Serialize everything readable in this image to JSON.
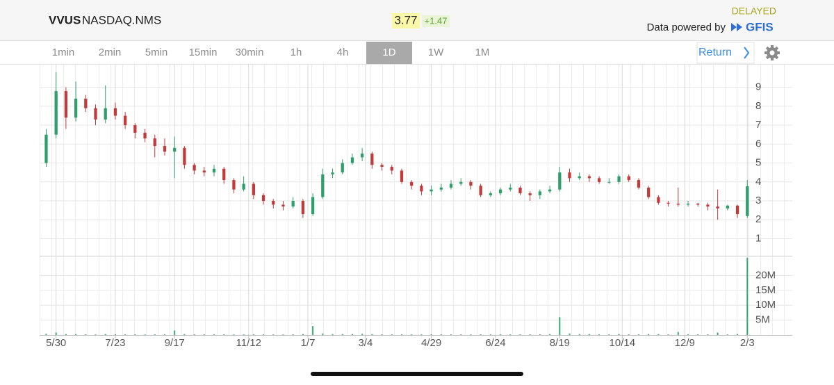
{
  "header": {
    "symbol": "VVUS",
    "exchange": "NASDAQ.NMS",
    "price": "3.77",
    "change": "+1.47",
    "status": "DELAYED",
    "powered_by": "Data powered by",
    "provider": "GFIS"
  },
  "toolbar": {
    "tabs": [
      "1min",
      "2min",
      "5min",
      "15min",
      "30min",
      "1h",
      "4h",
      "1D",
      "1W",
      "1M"
    ],
    "selected": 7,
    "return_label": "Return"
  },
  "chart_data": {
    "type": "candlestick",
    "x": [
      -6,
      0,
      6,
      12,
      18,
      24,
      30,
      36,
      42,
      48,
      54,
      60,
      66,
      72,
      78,
      84,
      90,
      96,
      102,
      108,
      114,
      120,
      126,
      132,
      138,
      144,
      150,
      156,
      162,
      168,
      174,
      180,
      186,
      192,
      198,
      204,
      210,
      216,
      222,
      228,
      234,
      240,
      246,
      252,
      258,
      264,
      270,
      276,
      282,
      288,
      294,
      300,
      306,
      312,
      318,
      324,
      330,
      336,
      342,
      348,
      354,
      360,
      366,
      372,
      378,
      384,
      390,
      396,
      402,
      408,
      414,
      420
    ],
    "open": [
      5.0,
      6.5,
      8.8,
      7.4,
      8.4,
      7.9,
      7.3,
      7.9,
      7.5,
      7.0,
      6.6,
      6.3,
      5.9,
      5.6,
      5.8,
      4.9,
      4.6,
      4.5,
      4.7,
      4.1,
      3.6,
      3.9,
      3.3,
      3.0,
      2.8,
      2.7,
      3.0,
      2.3,
      3.2,
      4.4,
      4.5,
      5.0,
      5.3,
      5.5,
      4.9,
      4.8,
      4.6,
      4.0,
      3.8,
      3.5,
      3.6,
      3.7,
      3.9,
      4.0,
      3.8,
      3.3,
      3.4,
      3.6,
      3.7,
      3.4,
      3.3,
      3.5,
      3.6,
      4.5,
      4.2,
      4.3,
      4.2,
      4.0,
      4.0,
      4.3,
      4.1,
      3.7,
      3.2,
      2.9,
      2.85,
      2.8,
      2.85,
      2.8,
      2.7,
      2.6,
      2.75,
      2.2
    ],
    "high": [
      6.8,
      9.8,
      9.0,
      9.3,
      8.6,
      8.1,
      9.1,
      8.2,
      7.7,
      7.1,
      6.8,
      6.5,
      6.3,
      6.4,
      5.9,
      5.0,
      4.8,
      4.9,
      4.8,
      4.2,
      4.3,
      4.0,
      3.4,
      3.1,
      3.0,
      3.2,
      3.1,
      3.4,
      4.7,
      4.7,
      5.2,
      5.5,
      5.8,
      5.6,
      5.0,
      4.9,
      4.7,
      4.1,
      3.9,
      3.8,
      3.9,
      4.1,
      4.2,
      4.1,
      3.9,
      3.5,
      3.7,
      3.9,
      3.8,
      3.5,
      3.6,
      3.8,
      4.8,
      4.7,
      4.5,
      4.4,
      4.3,
      4.2,
      4.4,
      4.4,
      4.2,
      3.8,
      3.3,
      3.0,
      3.7,
      3.0,
      2.9,
      2.9,
      3.6,
      2.8,
      2.8,
      4.1
    ],
    "low": [
      4.8,
      6.3,
      6.8,
      7.2,
      7.7,
      7.0,
      7.1,
      7.3,
      6.8,
      6.3,
      6.1,
      5.3,
      5.4,
      4.2,
      4.7,
      4.4,
      4.3,
      4.3,
      3.9,
      3.4,
      3.5,
      3.1,
      2.8,
      2.6,
      2.5,
      2.6,
      2.1,
      2.2,
      3.1,
      4.2,
      4.4,
      4.9,
      5.1,
      4.7,
      4.6,
      4.4,
      3.9,
      3.6,
      3.3,
      3.3,
      3.5,
      3.6,
      3.8,
      3.6,
      3.2,
      3.2,
      3.3,
      3.5,
      3.3,
      3.0,
      3.1,
      3.4,
      3.5,
      4.0,
      4.1,
      4.0,
      3.9,
      3.9,
      3.9,
      4.0,
      3.6,
      3.1,
      2.8,
      2.7,
      2.7,
      2.7,
      2.7,
      2.5,
      2.0,
      2.5,
      2.1,
      2.1
    ],
    "close": [
      6.5,
      8.8,
      7.4,
      8.4,
      7.9,
      7.3,
      7.9,
      7.5,
      7.0,
      6.6,
      6.3,
      5.9,
      5.6,
      5.8,
      4.9,
      4.6,
      4.5,
      4.7,
      4.1,
      3.6,
      3.9,
      3.3,
      3.0,
      2.8,
      2.7,
      3.0,
      2.3,
      3.2,
      4.4,
      4.5,
      5.0,
      5.3,
      5.5,
      4.9,
      4.8,
      4.6,
      4.0,
      3.8,
      3.5,
      3.6,
      3.7,
      3.9,
      4.0,
      3.8,
      3.3,
      3.4,
      3.6,
      3.7,
      3.4,
      3.3,
      3.5,
      3.6,
      4.5,
      4.2,
      4.3,
      4.2,
      4.0,
      4.0,
      4.3,
      4.1,
      3.7,
      3.2,
      2.9,
      2.85,
      2.8,
      2.85,
      2.8,
      2.7,
      2.6,
      2.75,
      2.3,
      3.77
    ],
    "volume": [
      400000,
      800000,
      300000,
      300000,
      200000,
      200000,
      300000,
      200000,
      200000,
      200000,
      200000,
      200000,
      200000,
      1500000,
      300000,
      200000,
      200000,
      200000,
      200000,
      200000,
      200000,
      200000,
      200000,
      200000,
      200000,
      200000,
      300000,
      3000000,
      500000,
      300000,
      300000,
      300000,
      400000,
      300000,
      200000,
      200000,
      200000,
      200000,
      200000,
      200000,
      200000,
      200000,
      200000,
      200000,
      200000,
      200000,
      200000,
      200000,
      200000,
      200000,
      200000,
      300000,
      6000000,
      500000,
      300000,
      300000,
      200000,
      200000,
      300000,
      200000,
      200000,
      300000,
      300000,
      200000,
      1000000,
      200000,
      200000,
      200000,
      800000,
      200000,
      300000,
      26000000
    ],
    "xlim": [
      -10,
      422
    ],
    "xticks": [
      {
        "value": 0,
        "label": "5/30"
      },
      {
        "value": 36,
        "label": "7/23"
      },
      {
        "value": 72,
        "label": "9/17"
      },
      {
        "value": 117,
        "label": "11/12"
      },
      {
        "value": 153,
        "label": "1/7"
      },
      {
        "value": 188,
        "label": "3/4"
      },
      {
        "value": 228,
        "label": "4/29"
      },
      {
        "value": 267,
        "label": "6/24"
      },
      {
        "value": 306,
        "label": "8/19"
      },
      {
        "value": 344,
        "label": "10/14"
      },
      {
        "value": 382,
        "label": "12/9"
      },
      {
        "value": 420,
        "label": "2/3"
      }
    ],
    "ylim": [
      0.1,
      10.2
    ],
    "yticks": [
      1,
      2,
      3,
      4,
      5,
      6,
      7,
      8,
      9
    ],
    "volume_ylim": [
      0,
      26200000
    ],
    "volume_yticks": [
      {
        "value": 5000000,
        "label": "5M"
      },
      {
        "value": 10000000,
        "label": "10M"
      },
      {
        "value": 15000000,
        "label": "15M"
      },
      {
        "value": 20000000,
        "label": "20M"
      }
    ],
    "up_color": "#2e9e6a",
    "down_color": "#c23a3a",
    "volume_color": "#3aa876",
    "grid": true
  }
}
